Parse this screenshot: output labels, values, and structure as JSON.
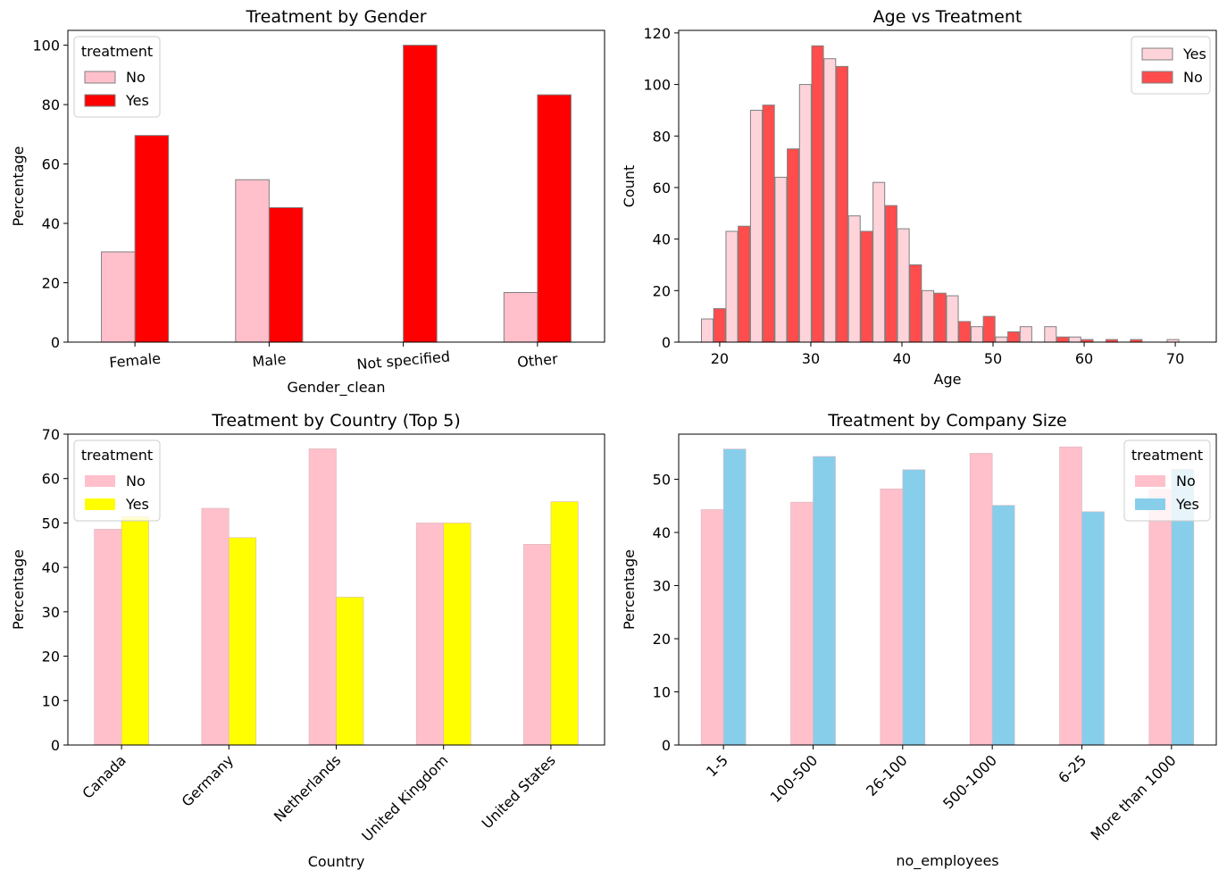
{
  "chart_data": [
    {
      "type": "bar",
      "title": "Treatment by Gender",
      "xlabel": "Gender_clean",
      "ylabel": "Percentage",
      "categories": [
        "Female",
        "Male",
        "Not specified",
        "Other"
      ],
      "ylim": [
        0,
        105
      ],
      "yticks": [
        0,
        20,
        40,
        60,
        80,
        100
      ],
      "legend": {
        "title": "treatment",
        "position": "upper-left"
      },
      "series": [
        {
          "name": "No",
          "color": "#ffc0cb",
          "edge": "#808080",
          "values": [
            30.4,
            54.7,
            0,
            16.7
          ]
        },
        {
          "name": "Yes",
          "color": "#ff0000",
          "edge": "#808080",
          "values": [
            69.6,
            45.3,
            100,
            83.3
          ]
        }
      ]
    },
    {
      "type": "histogram",
      "title": "Age  vs Treatment",
      "xlabel": "Age",
      "ylabel": "Count",
      "xlim": [
        15.5,
        74.5
      ],
      "ylim": [
        0,
        121
      ],
      "xticks": [
        20,
        30,
        40,
        50,
        60,
        70
      ],
      "yticks": [
        0,
        20,
        40,
        60,
        80,
        100,
        120
      ],
      "legend": {
        "position": "upper-right"
      },
      "bin_start": 18,
      "bin_width": 2.69,
      "series": [
        {
          "name": "Yes",
          "color": "#ffc0cb",
          "alpha": 0.7,
          "edge": "#808080",
          "values": [
            9,
            43,
            90,
            64,
            100,
            110,
            49,
            62,
            44,
            20,
            18,
            6,
            2,
            6,
            6,
            2,
            0,
            0,
            0,
            1
          ]
        },
        {
          "name": "No",
          "color": "#ff0000",
          "alpha": 0.7,
          "edge": "#808080",
          "values": [
            13,
            45,
            92,
            75,
            115,
            107,
            43,
            53,
            30,
            19,
            8,
            10,
            4,
            0,
            2,
            1,
            1,
            1,
            0,
            0
          ]
        }
      ]
    },
    {
      "type": "bar",
      "title": "Treatment by Country (Top 5)",
      "xlabel": "Country",
      "ylabel": "Percentage",
      "categories": [
        "Canada",
        "Germany",
        "Netherlands",
        "United Kingdom",
        "United States"
      ],
      "ylim": [
        0,
        70
      ],
      "yticks": [
        0,
        10,
        20,
        30,
        40,
        50,
        60,
        70
      ],
      "legend": {
        "title": "treatment",
        "position": "upper-left"
      },
      "series": [
        {
          "name": "No",
          "color": "#ffc0cb",
          "values": [
            48.6,
            53.3,
            66.7,
            50.0,
            45.2
          ]
        },
        {
          "name": "Yes",
          "color": "#ffff00",
          "values": [
            51.4,
            46.7,
            33.3,
            50.0,
            54.8
          ]
        }
      ]
    },
    {
      "type": "bar",
      "title": "Treatment by Company Size",
      "xlabel": "no_employees",
      "ylabel": "Percentage",
      "categories": [
        "1-5",
        "100-500",
        "26-100",
        "500-1000",
        "6-25",
        "More than 1000"
      ],
      "ylim": [
        0,
        58.5
      ],
      "yticks": [
        0,
        10,
        20,
        30,
        40,
        50
      ],
      "legend": {
        "title": "treatment",
        "position": "upper-right"
      },
      "series": [
        {
          "name": "No",
          "color": "#ffc0cb",
          "values": [
            44.3,
            45.7,
            48.2,
            54.9,
            56.1,
            48.1
          ]
        },
        {
          "name": "Yes",
          "color": "#87ceeb",
          "values": [
            55.7,
            54.3,
            51.8,
            45.1,
            43.9,
            51.9
          ]
        }
      ]
    }
  ]
}
